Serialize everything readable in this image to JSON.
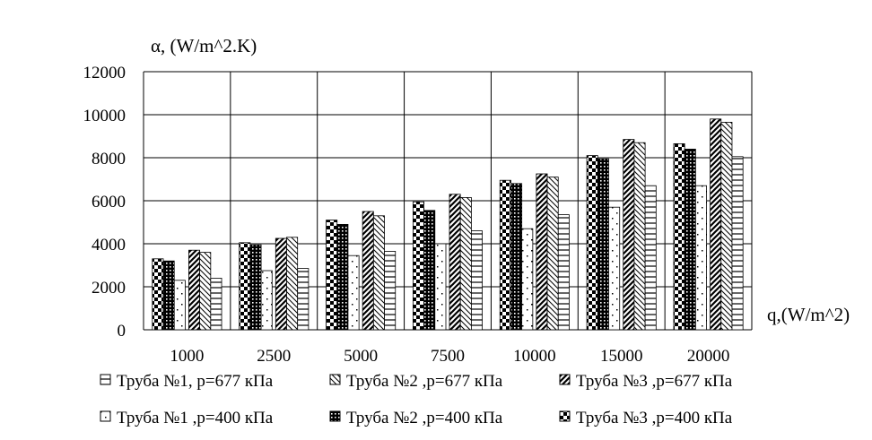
{
  "chart_data": {
    "type": "bar",
    "ylabel": "α, (W/m^2.K)",
    "xlabel": "q,(W/m^2)",
    "categories": [
      "1000",
      "2500",
      "5000",
      "7500",
      "10000",
      "15000",
      "20000"
    ],
    "ylim": [
      0,
      12000
    ],
    "yticks": [
      "0",
      "2000",
      "4000",
      "6000",
      "8000",
      "10000",
      "12000"
    ],
    "grid": true,
    "legend_position": "bottom",
    "series": [
      {
        "name": "Труба №3 ,p=400 кПа",
        "pattern": "checker",
        "values": [
          3300,
          4050,
          5100,
          5950,
          6950,
          8100,
          8650
        ]
      },
      {
        "name": "Труба №2 ,p=400 кПа",
        "pattern": "dotted",
        "values": [
          3200,
          3950,
          4900,
          5550,
          6800,
          7950,
          8400
        ]
      },
      {
        "name": "Труба №1 ,p=400 кПа",
        "pattern": "sparse",
        "values": [
          2300,
          2750,
          3450,
          4000,
          4700,
          5700,
          6700
        ]
      },
      {
        "name": "Труба №3 ,p=677 кПа",
        "pattern": "diagonal",
        "values": [
          3700,
          4250,
          5500,
          6300,
          7250,
          8850,
          9800
        ]
      },
      {
        "name": "Труба №2 ,p=677 кПа",
        "pattern": "hatch",
        "values": [
          3600,
          4300,
          5300,
          6150,
          7100,
          8700,
          9650
        ]
      },
      {
        "name": "Труба №1, p=677 кПа",
        "pattern": "hlines",
        "values": [
          2400,
          2850,
          3650,
          4600,
          5350,
          6700,
          8050
        ]
      }
    ],
    "legend_rows": [
      [
        "Труба №1, p=677 кПа",
        "Труба №2 ,p=677 кПа",
        "Труба №3 ,p=677 кПа"
      ],
      [
        "Труба №1 ,p=400 кПа",
        "Труба №2 ,p=400 кПа",
        "Труба №3 ,p=400 кПа"
      ]
    ]
  }
}
